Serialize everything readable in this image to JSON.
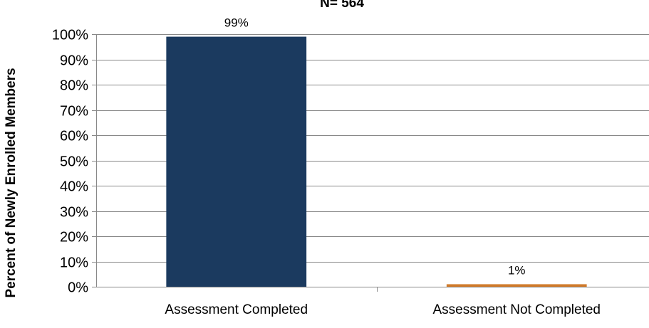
{
  "chart_data": {
    "type": "bar",
    "title": "",
    "subtitle": "N= 564",
    "xlabel": "",
    "ylabel": "Percent of Newly Enrolled Members",
    "categories": [
      "Assessment Completed",
      "Assessment Not Completed"
    ],
    "values": [
      99,
      1
    ],
    "data_labels": [
      "99%",
      "1%"
    ],
    "bar_colors": [
      "#1b3a5f",
      "#d07a2a"
    ],
    "ylim": [
      0,
      100
    ],
    "yticks": [
      0,
      10,
      20,
      30,
      40,
      50,
      60,
      70,
      80,
      90,
      100
    ],
    "ytick_labels": [
      "0%",
      "10%",
      "20%",
      "30%",
      "40%",
      "50%",
      "60%",
      "70%",
      "80%",
      "90%",
      "100%"
    ],
    "gridlines": true,
    "legend": "none",
    "gridline_color": "#888888",
    "axis_color": "#888888"
  }
}
